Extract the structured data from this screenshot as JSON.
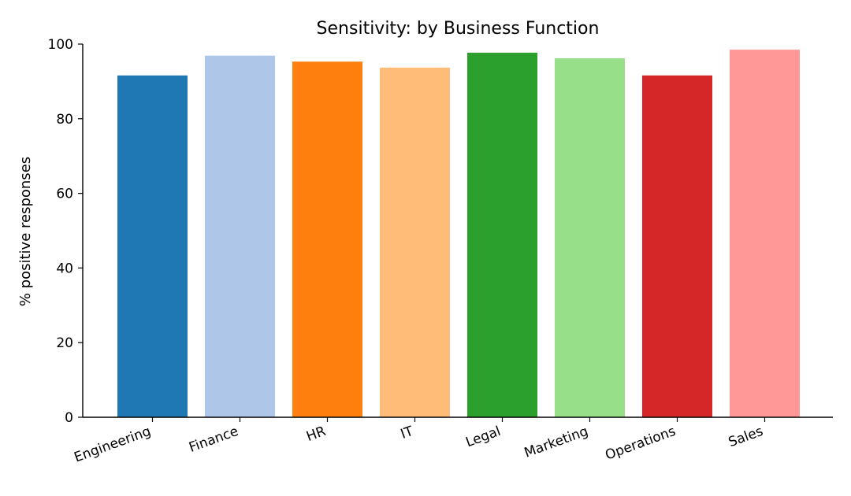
{
  "chart_data": {
    "type": "bar",
    "title": "Sensitivity: by Business Function",
    "xlabel": "",
    "ylabel": "% positive responses",
    "categories": [
      "Engineering",
      "Finance",
      "HR",
      "IT",
      "Legal",
      "Marketing",
      "Operations",
      "Sales"
    ],
    "values": [
      91.6,
      96.9,
      95.3,
      93.7,
      97.7,
      96.2,
      91.6,
      98.5
    ],
    "colors": [
      "#1f77b4",
      "#aec7e8",
      "#ff7f0e",
      "#ffbb78",
      "#2ca02c",
      "#98df8a",
      "#d62728",
      "#ff9896"
    ],
    "ylim": [
      0,
      100
    ],
    "yticks": [
      0,
      20,
      40,
      60,
      80,
      100
    ],
    "grid": false,
    "legend": "none"
  }
}
